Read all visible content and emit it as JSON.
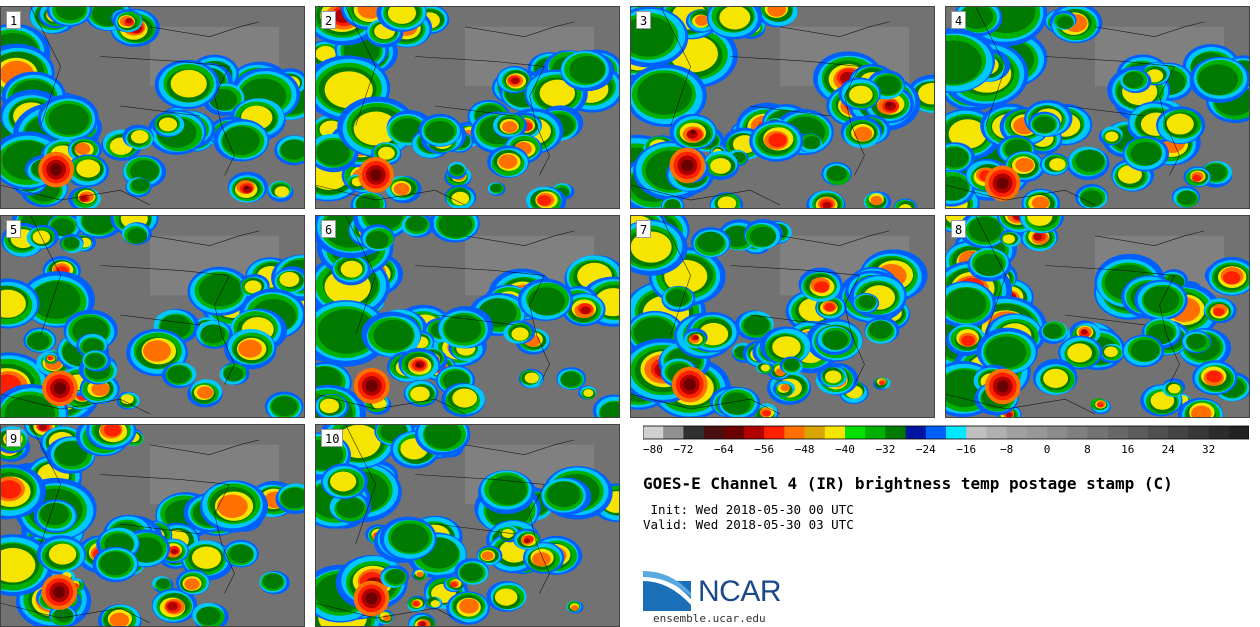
{
  "panels": [
    {
      "label": "1"
    },
    {
      "label": "2"
    },
    {
      "label": "3"
    },
    {
      "label": "4"
    },
    {
      "label": "5"
    },
    {
      "label": "6"
    },
    {
      "label": "7"
    },
    {
      "label": "8"
    },
    {
      "label": "9"
    },
    {
      "label": "10"
    }
  ],
  "colorbar": {
    "colors": [
      "#d0d0d0",
      "#909090",
      "#303030",
      "#4a1010",
      "#6a0000",
      "#b00000",
      "#ff2000",
      "#ff7000",
      "#d9a500",
      "#f5e500",
      "#00e000",
      "#00b000",
      "#007a00",
      "#0014a0",
      "#0060ff",
      "#00e8ff",
      "#c0c0c0",
      "#b0b0b0",
      "#a0a0a0",
      "#989898",
      "#8c8c8c",
      "#808080",
      "#747474",
      "#686868",
      "#5c5c5c",
      "#505050",
      "#444444",
      "#383838",
      "#2c2c2c",
      "#222222"
    ],
    "tick_labels": [
      "−80",
      "−72",
      "−64",
      "−56",
      "−48",
      "−40",
      "−32",
      "−24",
      "−16",
      "−8",
      "0",
      "8",
      "16",
      "24",
      "32"
    ]
  },
  "title": "GOES-E Channel 4 (IR) brightness temp postage stamp (C)",
  "init": " Init: Wed 2018-05-30 00 UTC",
  "valid": "Valid: Wed 2018-05-30 03 UTC",
  "logo": {
    "text": "NCAR",
    "color": "#1a4a8a"
  },
  "site": "ensemble.ucar.edu"
}
